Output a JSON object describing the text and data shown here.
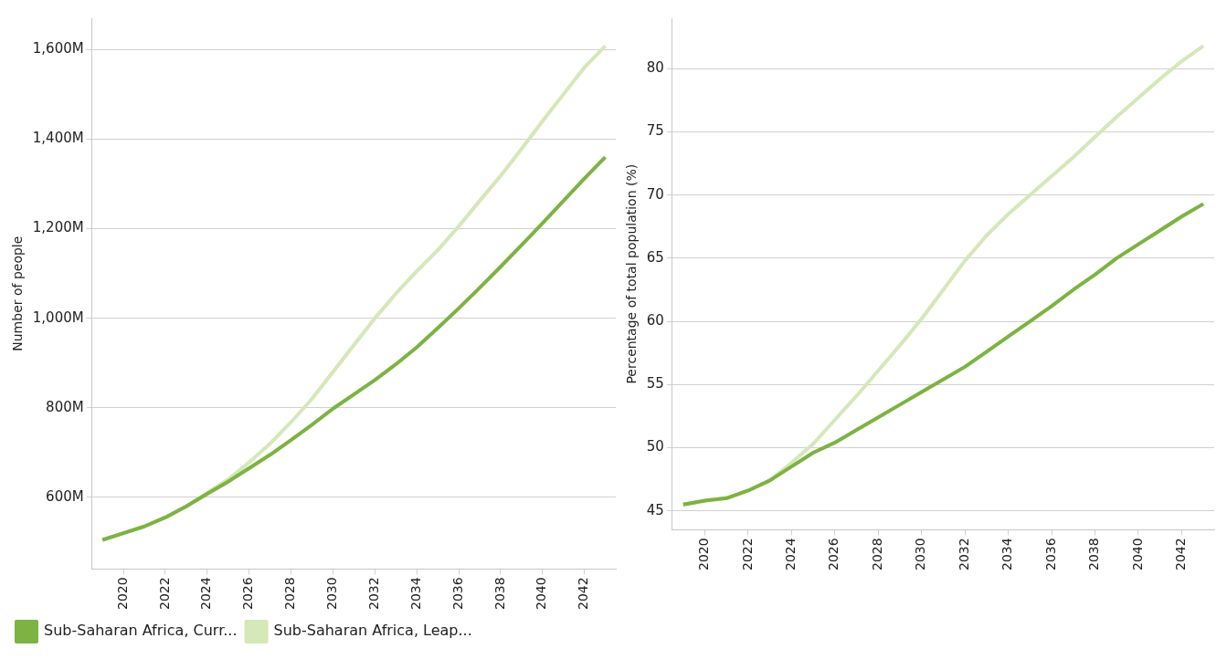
{
  "chart_data": [
    {
      "type": "line",
      "ylabel": "Number of people",
      "x": [
        2019,
        2020,
        2021,
        2022,
        2023,
        2024,
        2025,
        2026,
        2027,
        2028,
        2029,
        2030,
        2031,
        2032,
        2033,
        2034,
        2035,
        2036,
        2037,
        2038,
        2039,
        2040,
        2041,
        2042,
        2043
      ],
      "series": [
        {
          "name": "Sub-Saharan Africa, Curr...",
          "color": "#7cb342",
          "values": [
            505,
            520,
            535,
            555,
            580,
            608,
            635,
            665,
            695,
            728,
            762,
            798,
            830,
            862,
            897,
            935,
            978,
            1022,
            1068,
            1115,
            1163,
            1212,
            1262,
            1312,
            1360
          ]
        },
        {
          "name": "Sub-Saharan Africa, Leap...",
          "color": "#d4e8b8",
          "values": [
            505,
            520,
            535,
            555,
            580,
            610,
            640,
            678,
            720,
            768,
            820,
            880,
            940,
            1000,
            1055,
            1105,
            1152,
            1205,
            1262,
            1318,
            1378,
            1440,
            1500,
            1560,
            1608
          ]
        }
      ],
      "xlim": [
        2018.5,
        2043.5
      ],
      "xticks": [
        2020,
        2022,
        2024,
        2026,
        2028,
        2030,
        2032,
        2034,
        2036,
        2038,
        2040,
        2042
      ],
      "ylim": [
        440,
        1670
      ],
      "yticks": [
        {
          "value": 600,
          "label": "600M"
        },
        {
          "value": 800,
          "label": "800M"
        },
        {
          "value": 1000,
          "label": "1,000M"
        },
        {
          "value": 1200,
          "label": "1,200M"
        },
        {
          "value": 1400,
          "label": "1,400M"
        },
        {
          "value": 1600,
          "label": "1,600M"
        }
      ],
      "grid": "y",
      "legend": "bottom",
      "marker": "none"
    },
    {
      "type": "line",
      "ylabel": "Percentage of total population (%)",
      "x": [
        2019,
        2020,
        2021,
        2022,
        2023,
        2024,
        2025,
        2026,
        2027,
        2028,
        2029,
        2030,
        2031,
        2032,
        2033,
        2034,
        2035,
        2036,
        2037,
        2038,
        2039,
        2040,
        2041,
        2042,
        2043
      ],
      "series": [
        {
          "color": "#7cb342",
          "values": [
            45.5,
            45.8,
            46.0,
            46.6,
            47.4,
            48.5,
            49.6,
            50.4,
            51.4,
            52.4,
            53.4,
            54.4,
            55.4,
            56.4,
            57.6,
            58.8,
            60.0,
            61.2,
            62.5,
            63.7,
            65.0,
            66.1,
            67.2,
            68.3,
            69.3
          ]
        },
        {
          "color": "#d4e8b8",
          "values": [
            45.5,
            45.8,
            46.0,
            46.6,
            47.4,
            48.8,
            50.3,
            52.2,
            54.1,
            56.1,
            58.1,
            60.2,
            62.5,
            64.8,
            66.8,
            68.5,
            70.0,
            71.5,
            73.0,
            74.6,
            76.2,
            77.7,
            79.2,
            80.6,
            81.8
          ]
        }
      ],
      "xlim": [
        2018.5,
        2043.5
      ],
      "xticks": [
        2020,
        2022,
        2024,
        2026,
        2028,
        2030,
        2032,
        2034,
        2036,
        2038,
        2040,
        2042
      ],
      "ylim": [
        43.5,
        84
      ],
      "yticks": [
        45,
        50,
        55,
        60,
        65,
        70,
        75,
        80
      ],
      "grid": "y",
      "marker": "none"
    }
  ]
}
